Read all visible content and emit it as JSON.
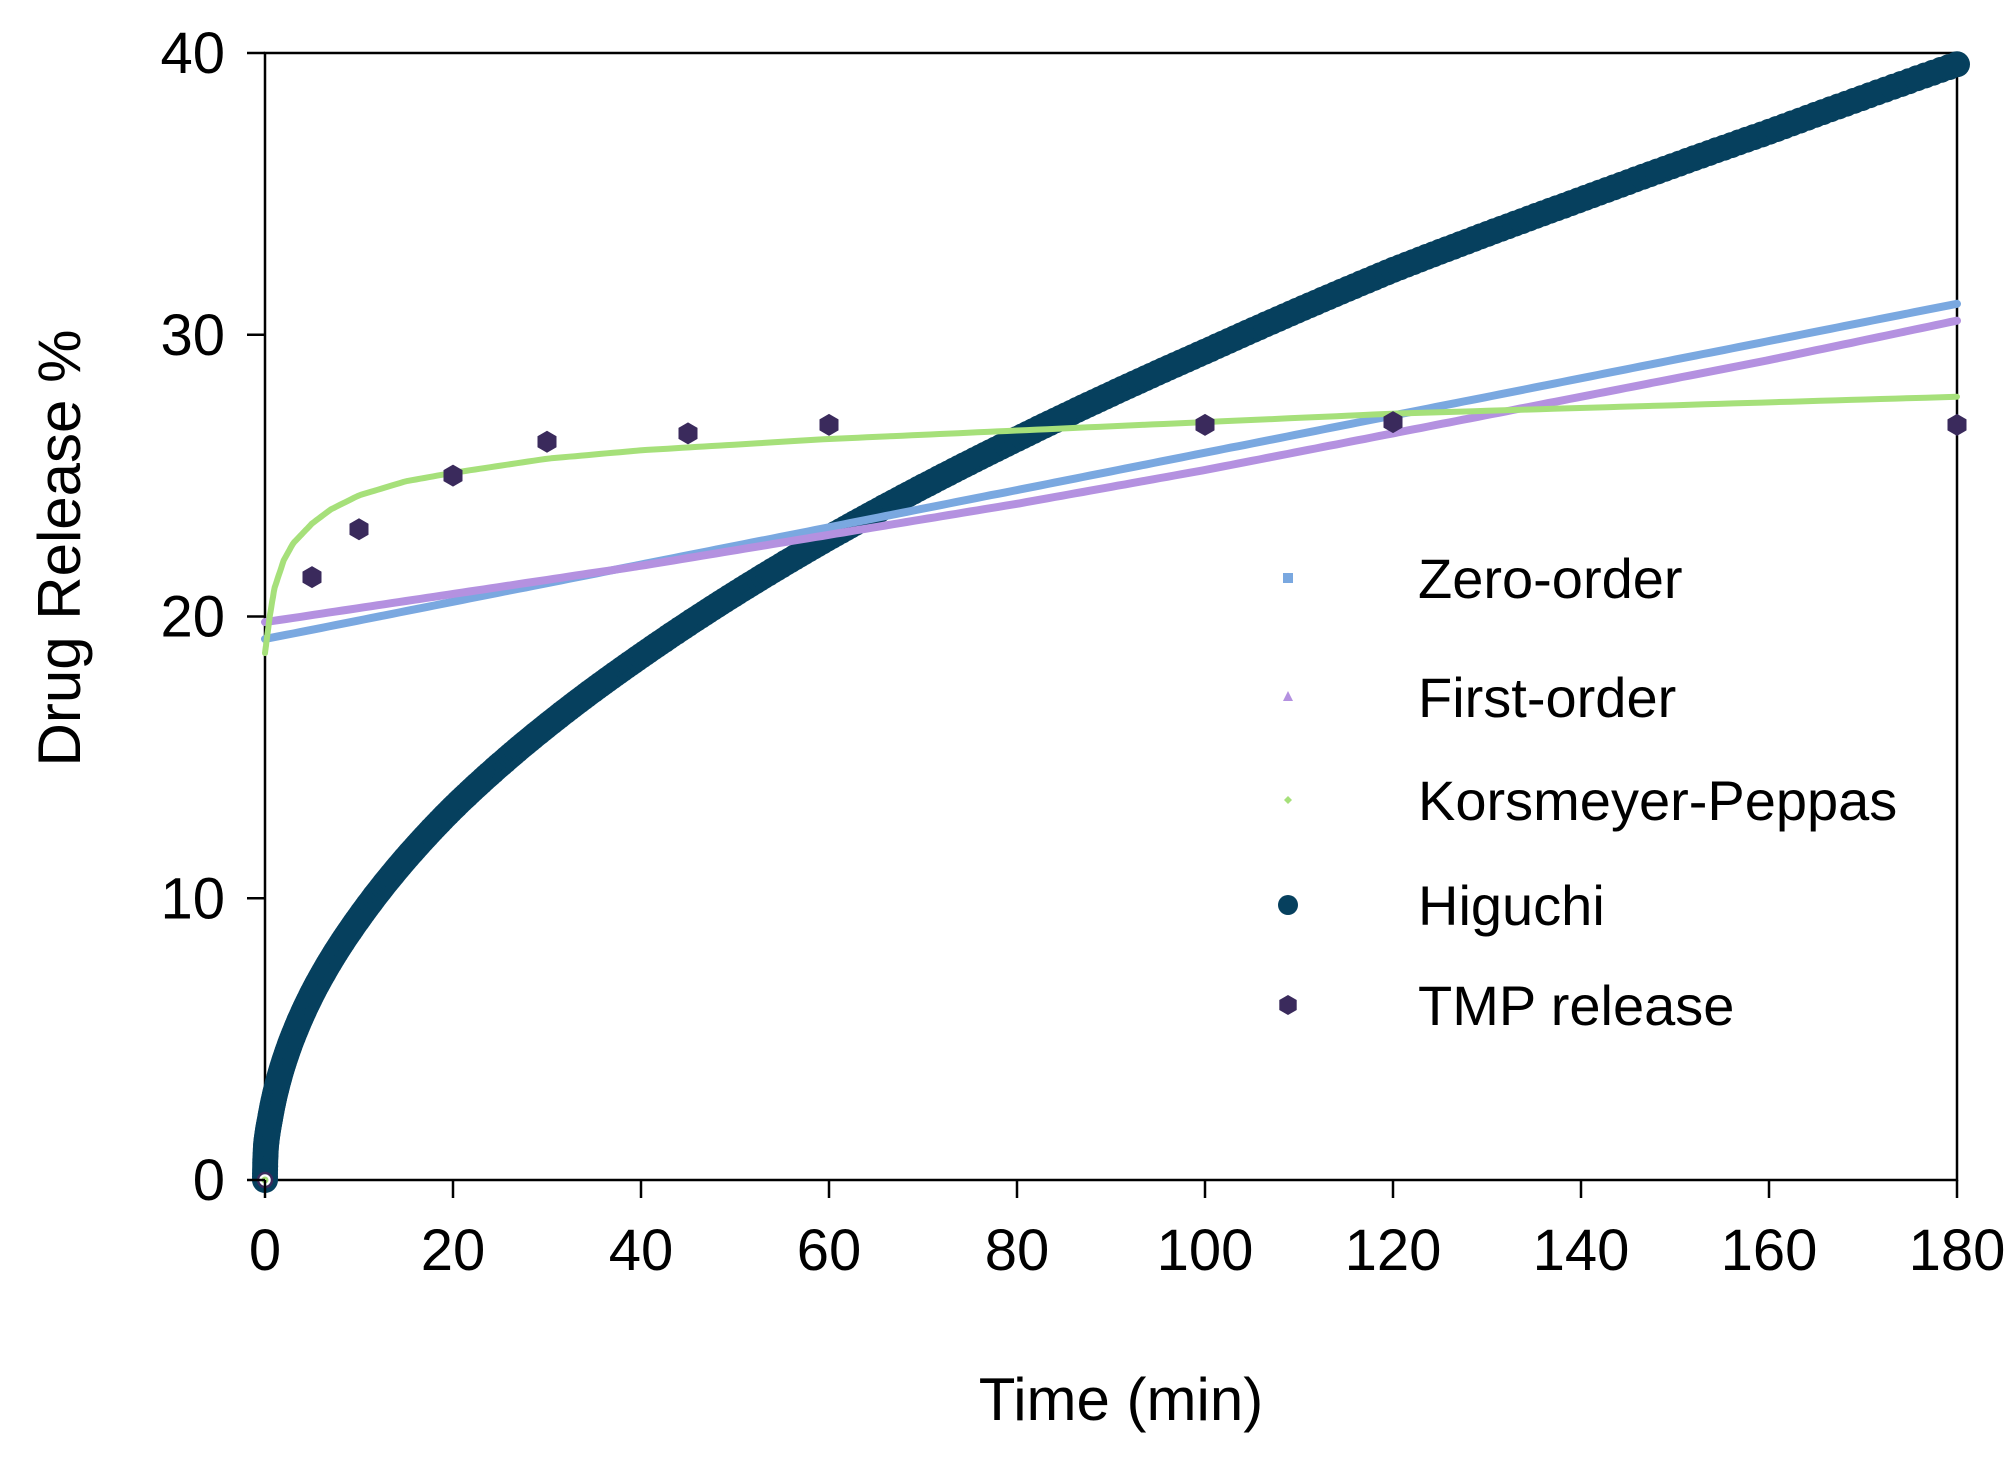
{
  "chart_data": {
    "type": "line",
    "title": "",
    "xlabel": "Time (min)",
    "ylabel": "Drug Release %",
    "xlim": [
      0,
      180
    ],
    "ylim": [
      0,
      40
    ],
    "xticks": [
      0,
      20,
      40,
      60,
      80,
      100,
      120,
      140,
      160,
      180
    ],
    "yticks": [
      0,
      10,
      20,
      30,
      40
    ],
    "grid": false,
    "legend_position": "center-right",
    "series": [
      {
        "name": "Zero-order",
        "kind": "line",
        "color": "#7aa8e0",
        "marker": "square",
        "x": [
          0,
          180
        ],
        "y": [
          19.2,
          31.1
        ]
      },
      {
        "name": "First-order",
        "kind": "line",
        "color": "#b491e0",
        "marker": "triangle",
        "x": [
          0,
          20,
          40,
          60,
          80,
          100,
          120,
          140,
          160,
          180
        ],
        "y": [
          19.8,
          20.8,
          21.8,
          22.9,
          24.0,
          25.2,
          26.5,
          27.8,
          29.1,
          30.5
        ]
      },
      {
        "name": "Korsmeyer-Peppas",
        "kind": "line",
        "color": "#a6e07a",
        "marker": "diamond",
        "x": [
          0,
          0.5,
          1,
          2,
          3,
          5,
          7,
          10,
          15,
          20,
          30,
          40,
          50,
          60,
          80,
          100,
          120,
          140,
          160,
          180
        ],
        "y": [
          18.7,
          20.0,
          21.0,
          22.0,
          22.6,
          23.3,
          23.8,
          24.3,
          24.8,
          25.1,
          25.6,
          25.9,
          26.1,
          26.3,
          26.6,
          26.9,
          27.2,
          27.4,
          27.6,
          27.8
        ]
      },
      {
        "name": "Higuchi",
        "kind": "dense-markers",
        "color": "#06405e",
        "marker": "circle",
        "x": [
          0,
          0.1,
          0.5,
          1,
          5,
          10,
          20,
          40,
          60,
          80,
          100,
          120,
          140,
          160,
          180
        ],
        "y": [
          0,
          1.2,
          2.1,
          2.95,
          6.6,
          9.3,
          13.2,
          18.6,
          22.8,
          26.3,
          29.4,
          32.3,
          34.8,
          37.2,
          39.6
        ]
      },
      {
        "name": "TMP release",
        "kind": "scatter",
        "color": "#3a2a5c",
        "marker": "hexagon",
        "x": [
          0,
          5,
          10,
          20,
          30,
          45,
          60,
          100,
          120,
          180
        ],
        "y": [
          0,
          21.4,
          23.1,
          25.0,
          26.2,
          26.5,
          26.8,
          26.8,
          26.9,
          26.8
        ]
      }
    ]
  }
}
